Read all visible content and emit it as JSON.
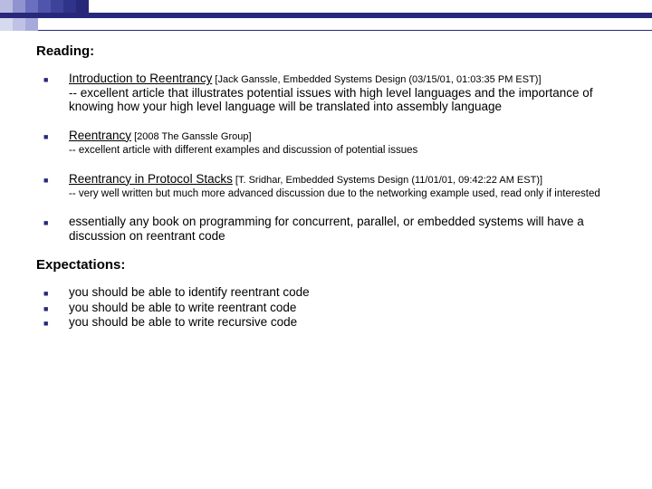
{
  "colors": {
    "accent": "#27287a",
    "squares_row1": [
      "#b9bce0",
      "#8f93cf",
      "#6a6fbf",
      "#4f54ad",
      "#3e4399",
      "#2f338a",
      "#27287a"
    ],
    "squares_row3": [
      "#d7d9ee",
      "#bfc2e5",
      "#a6aadb"
    ],
    "text": "#000000",
    "background": "#ffffff"
  },
  "heading1": "Reading:",
  "reading": [
    {
      "link": "Introduction to Reentrancy",
      "cite": " [Jack Ganssle, Embedded Systems Design (03/15/01, 01:03:35 PM EST)]",
      "note": "-- excellent article that illustrates potential issues with high level languages and the importance of knowing how your high level language will be translated into assembly language",
      "note_small": false
    },
    {
      "link": "Reentrancy",
      "cite": " [2008 The Ganssle Group]",
      "note": "-- excellent article with different examples and discussion of potential issues",
      "note_small": true
    },
    {
      "link": "Reentrancy in Protocol Stacks",
      "cite": " [T. Sridhar, Embedded Systems Design (11/01/01, 09:42:22 AM EST)]",
      "note": "-- very well written but much more advanced discussion due to the networking example used, read only if interested",
      "note_small": true
    },
    {
      "link": "",
      "cite": "",
      "note": "essentially any book on programming for concurrent, parallel, or embedded systems will have a discussion on reentrant code",
      "note_small": false
    }
  ],
  "heading2": "Expectations:",
  "expect": [
    "you should be able to identify reentrant code",
    "you should be able to write reentrant code",
    "you should be able to write recursive code"
  ]
}
